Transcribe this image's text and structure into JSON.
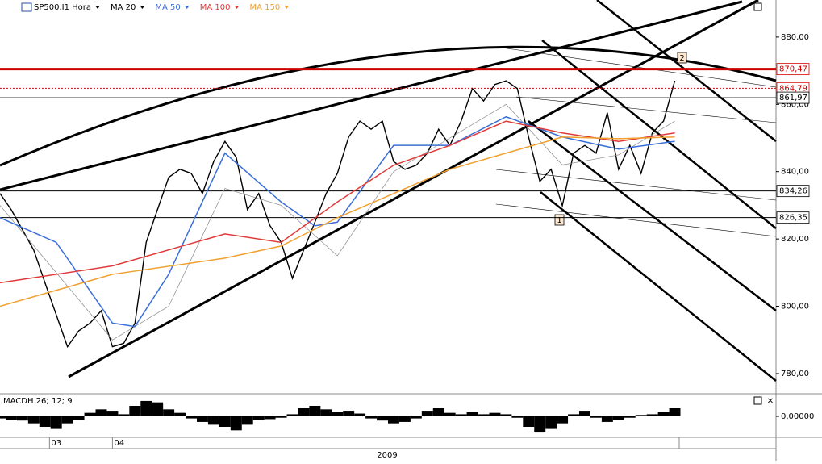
{
  "chart_data": {
    "type": "line",
    "xlim": [
      0,
      69
    ],
    "ylim": [
      774,
      891
    ],
    "xticks": [
      {
        "value": 4.4,
        "label": "03"
      },
      {
        "value": 10,
        "label": "04"
      }
    ],
    "x_group_label": "2009",
    "yticks": [
      {
        "value": 780,
        "label": "780,00"
      },
      {
        "value": 800,
        "label": "800,00"
      },
      {
        "value": 820,
        "label": "820,00"
      },
      {
        "value": 840,
        "label": "840,00"
      },
      {
        "value": 860,
        "label": "860,00"
      },
      {
        "value": 880,
        "label": "880,00"
      }
    ],
    "series": [
      {
        "name": "SP500.I1 Hora",
        "color": "#000000",
        "x": [
          0,
          1,
          2,
          3,
          4,
          5,
          6,
          7,
          8,
          9,
          10,
          11,
          12,
          13,
          14,
          15,
          16,
          17,
          18,
          19,
          20,
          21,
          22,
          23,
          24,
          25,
          26,
          27,
          28,
          29,
          30,
          31,
          32,
          33,
          34,
          35,
          36,
          37,
          38,
          39,
          40,
          41,
          42,
          43,
          44,
          45,
          46,
          47,
          48,
          49,
          50,
          51,
          52,
          53,
          54,
          55,
          56,
          57,
          58,
          59,
          60
        ],
        "values": [
          833.5,
          828.7,
          822.7,
          816.7,
          807,
          797.5,
          788,
          792.7,
          795,
          798.7,
          788,
          789,
          795,
          819,
          828.7,
          838.3,
          840.7,
          839.5,
          833.5,
          843,
          849,
          844.3,
          828.7,
          833.5,
          824,
          819,
          808.3,
          816.7,
          825,
          833.5,
          839.5,
          850.3,
          855,
          852.6,
          855,
          843,
          840.7,
          841.9,
          845.5,
          852.6,
          847.8,
          855,
          864.7,
          861,
          865.9,
          867,
          864.7,
          850.3,
          837.1,
          840.7,
          829.9,
          845.5,
          847.8,
          845.5,
          857.5,
          840.7,
          847.8,
          839.5,
          851.5,
          855,
          867
        ]
      },
      {
        "name": "MA 20",
        "color": "#888888",
        "x": [
          0,
          5,
          10,
          15,
          20,
          25,
          30,
          35,
          40,
          45,
          50,
          55,
          60
        ],
        "values": [
          830,
          810,
          790,
          800,
          835,
          830,
          815,
          840,
          850,
          860,
          842,
          845,
          855
        ]
      },
      {
        "name": "MA 50",
        "color": "#3a6fd8",
        "x": [
          0,
          5,
          10,
          12,
          15,
          20,
          25,
          28,
          30,
          35,
          40,
          45,
          50,
          55,
          60
        ],
        "values": [
          826.3,
          819,
          795,
          794,
          809.5,
          845.5,
          831,
          823.9,
          825,
          847.8,
          847.8,
          856.3,
          850.3,
          846.7,
          849
        ]
      },
      {
        "name": "MA 100",
        "color": "#e03a3a",
        "x": [
          0,
          10,
          20,
          25,
          30,
          35,
          40,
          45,
          50,
          55,
          60
        ],
        "values": [
          807,
          812,
          821.5,
          819,
          831,
          841.9,
          847.8,
          855,
          851.5,
          849,
          851.5
        ]
      },
      {
        "name": "MA 150",
        "color": "#f0a030",
        "x": [
          0,
          10,
          20,
          25,
          30,
          35,
          40,
          45,
          50,
          55,
          60
        ],
        "values": [
          800,
          809.5,
          814.3,
          817.9,
          826.3,
          833.5,
          840.7,
          845.5,
          850.3,
          849.8,
          850.3
        ]
      }
    ],
    "levels": [
      {
        "value": 870.47,
        "label": "870,47",
        "color": "#d00000",
        "style": "thick"
      },
      {
        "value": 864.79,
        "label": "864,79",
        "color": "#d00000",
        "style": "dotted"
      },
      {
        "value": 861.97,
        "label": "861,97",
        "color": "#000000",
        "style": "thin"
      },
      {
        "value": 834.26,
        "label": "834,26",
        "color": "#000000",
        "style": "thin"
      },
      {
        "value": 826.35,
        "label": "826,35",
        "color": "#000000",
        "style": "thin"
      }
    ],
    "annotations": [
      "1",
      "2"
    ],
    "macd": {
      "title": "MACDH 26; 12; 9",
      "ylim": [
        -3,
        3
      ],
      "yticks": [
        {
          "value": 0,
          "label": "0,00000"
        }
      ],
      "values": [
        -0.3,
        -0.5,
        -0.6,
        -1,
        -1.5,
        -1.8,
        -1,
        -0.5,
        0.5,
        1,
        0.8,
        0.3,
        1.5,
        2.2,
        2,
        1,
        0.5,
        -0.3,
        -0.8,
        -1.2,
        -1.5,
        -2,
        -1.2,
        -0.5,
        -0.4,
        -0.2,
        0.3,
        1.2,
        1.5,
        1,
        0.6,
        0.8,
        0.4,
        -0.3,
        -0.6,
        -1,
        -0.8,
        -0.3,
        0.8,
        1.2,
        0.5,
        0.3,
        0.6,
        0.3,
        0.5,
        0.3,
        -0.2,
        -1.5,
        -2.2,
        -1.8,
        -1,
        0.3,
        0.8,
        -0.2,
        -0.8,
        -0.5,
        -0.2,
        0.2,
        0.3,
        0.6,
        1.2
      ]
    }
  }
}
